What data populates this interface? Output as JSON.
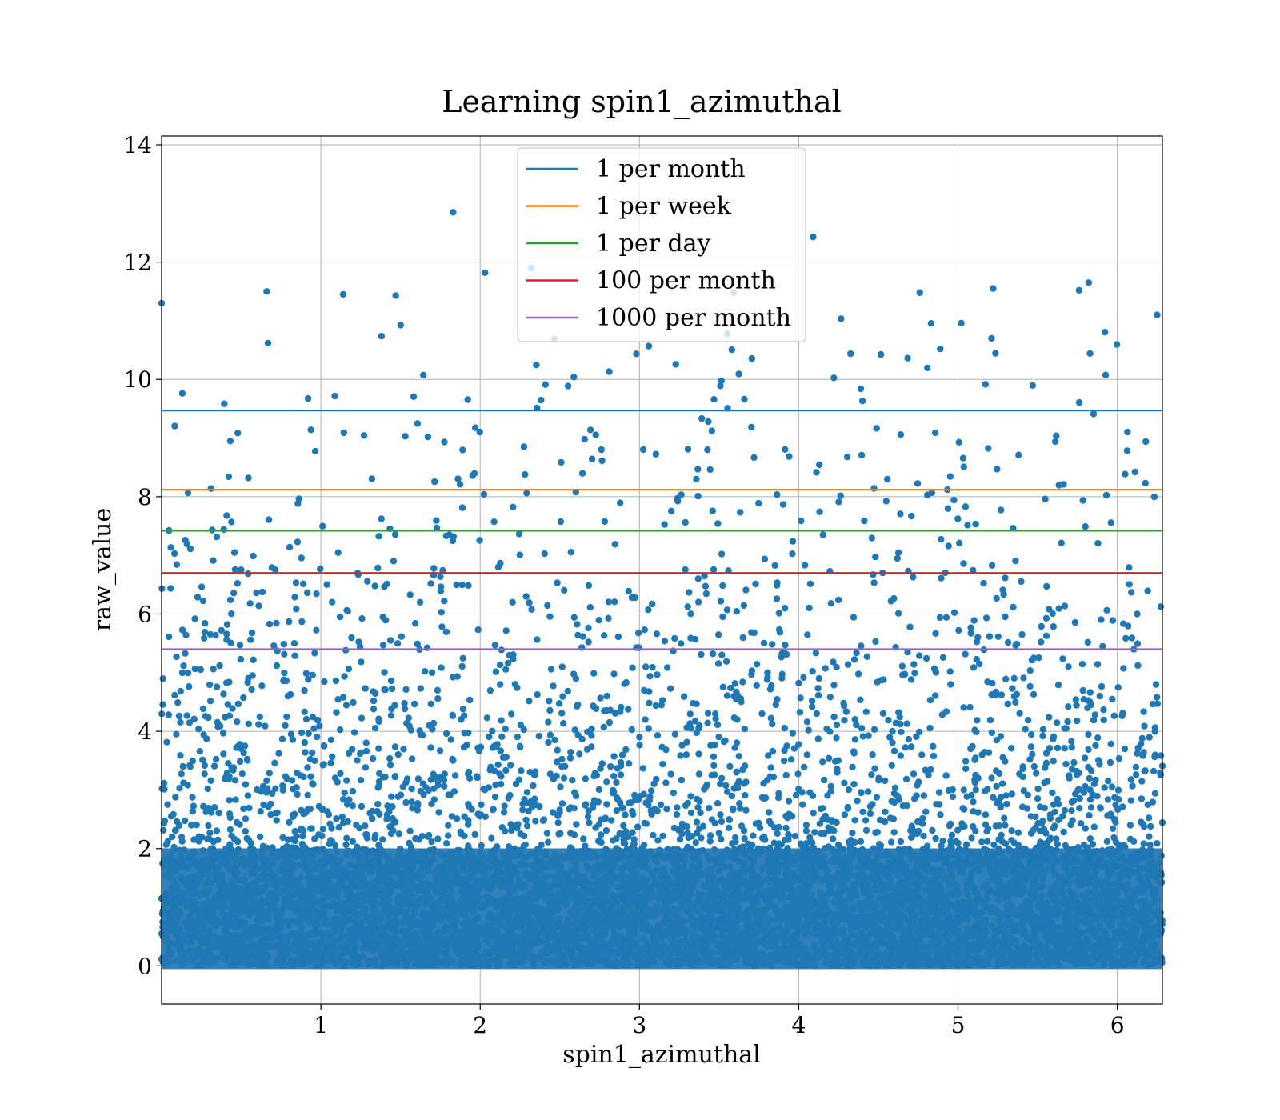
{
  "chart_data": {
    "type": "scatter",
    "title": "Learning spin1_azimuthal",
    "xlabel": "spin1_azimuthal",
    "ylabel": "raw_value",
    "xlim": [
      0.0,
      6.283
    ],
    "ylim": [
      -0.65,
      14.15
    ],
    "xticks": [
      1,
      2,
      3,
      4,
      5,
      6
    ],
    "yticks": [
      0,
      2,
      4,
      6,
      8,
      10,
      12,
      14
    ],
    "grid": true,
    "legend_position": "top-center",
    "marker_color": "#1f77b4",
    "scatter_series": {
      "point_count_estimate": 30000,
      "distribution": "dense band 0-2, thinning toward 11-12",
      "notable_points": [
        {
          "x": 1.83,
          "y": 12.85
        },
        {
          "x": 4.09,
          "y": 12.43
        },
        {
          "x": 2.03,
          "y": 11.82
        },
        {
          "x": 2.32,
          "y": 11.9
        },
        {
          "x": 5.82,
          "y": 11.65
        },
        {
          "x": 0.66,
          "y": 11.5
        },
        {
          "x": 1.14,
          "y": 11.45
        },
        {
          "x": 4.76,
          "y": 11.48
        },
        {
          "x": 5.22,
          "y": 11.55
        },
        {
          "x": 5.76,
          "y": 11.52
        },
        {
          "x": 6.25,
          "y": 11.1
        },
        {
          "x": 0.0,
          "y": 11.3
        },
        {
          "x": 3.59,
          "y": 11.48
        },
        {
          "x": 1.47,
          "y": 11.43
        }
      ]
    },
    "series": [
      {
        "name": "1 per month",
        "y": 9.47,
        "color": "#1f77b4"
      },
      {
        "name": "1 per week",
        "y": 8.12,
        "color": "#ff7f0e"
      },
      {
        "name": "1 per day",
        "y": 7.42,
        "color": "#2ca02c"
      },
      {
        "name": "100 per month",
        "y": 6.7,
        "color": "#d62728"
      },
      {
        "name": "1000 per month",
        "y": 5.4,
        "color": "#9467bd"
      }
    ]
  }
}
